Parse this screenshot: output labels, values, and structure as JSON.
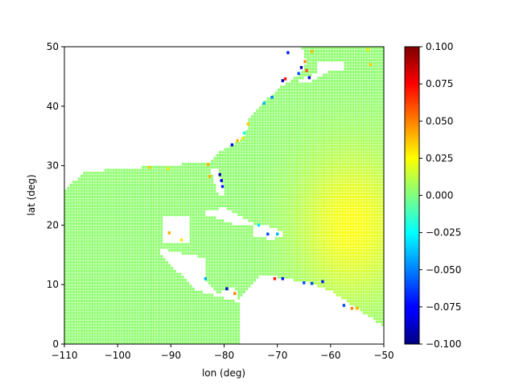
{
  "chart_data": {
    "type": "heatmap",
    "title": "",
    "xlabel": "lon (deg)",
    "ylabel": "lat (deg)",
    "xlim": [
      -110,
      -50
    ],
    "ylim": [
      0,
      50
    ],
    "x_ticks": [
      -110,
      -100,
      -90,
      -80,
      -70,
      -60,
      -50
    ],
    "x_tick_labels": [
      "−110",
      "−100",
      "−90",
      "−80",
      "−70",
      "−60",
      "−50"
    ],
    "y_ticks": [
      0,
      10,
      20,
      30,
      40,
      50
    ],
    "y_tick_labels": [
      "0",
      "10",
      "20",
      "30",
      "40",
      "50"
    ],
    "grid": false,
    "grid_step_deg": 0.5,
    "colormap": "jet",
    "colorbar": {
      "min": -0.1,
      "max": 0.1,
      "ticks": [
        -0.1,
        -0.075,
        -0.05,
        -0.025,
        0.0,
        0.025,
        0.05,
        0.075,
        0.1
      ],
      "tick_labels": [
        "−0.100",
        "−0.075",
        "−0.050",
        "−0.025",
        "0.000",
        "0.025",
        "0.050",
        "0.075",
        "0.100"
      ]
    },
    "typical_value": 0.003,
    "field_maximum_region": {
      "lon": -56,
      "lat": 20,
      "value": 0.025
    },
    "domain_mask": {
      "west_boundary_lat_to_lon": [
        [
          0,
          -110
        ],
        [
          26,
          -110
        ],
        [
          29,
          -106
        ],
        [
          29.8,
          -95
        ],
        [
          29.9,
          -90
        ],
        [
          30.6,
          -86
        ],
        [
          29.5,
          -84
        ],
        [
          32,
          -81.3
        ],
        [
          34.8,
          -76.2
        ],
        [
          38,
          -75.2
        ],
        [
          41,
          -72.2
        ],
        [
          42,
          -70.5
        ],
        [
          43.5,
          -69
        ],
        [
          45.5,
          -65.5
        ],
        [
          47.5,
          -64.5
        ],
        [
          50,
          -65.5
        ]
      ],
      "land_blocks": [
        {
          "name": "Yucatan",
          "lon": [
            -91.5,
            -86.5
          ],
          "lat": [
            17,
            21.5
          ]
        },
        {
          "name": "Central America",
          "points": [
            [
              -92,
              16
            ],
            [
              -83.5,
              14.5
            ],
            [
              -83.5,
              10.5
            ],
            [
              -81,
              8.5
            ],
            [
              -78,
              9.5
            ],
            [
              -77,
              7
            ],
            [
              -85,
              9
            ],
            [
              -92,
              15
            ]
          ]
        },
        {
          "name": "Cuba",
          "points": [
            [
              -84.5,
              22
            ],
            [
              -80,
              23
            ],
            [
              -74.5,
              20.2
            ],
            [
              -77.5,
              19.8
            ],
            [
              -82,
              21.5
            ]
          ]
        },
        {
          "name": "Hispaniola",
          "points": [
            [
              -74.5,
              19.8
            ],
            [
              -72,
              20
            ],
            [
              -68.4,
              18.5
            ],
            [
              -71,
              17.6
            ],
            [
              -74.5,
              18.2
            ]
          ]
        },
        {
          "name": "South America",
          "points": [
            [
              -77,
              0
            ],
            [
              -77,
              8
            ],
            [
              -73,
              11.5
            ],
            [
              -71.5,
              11.5
            ],
            [
              -64,
              10.3
            ],
            [
              -60,
              9
            ],
            [
              -55,
              6
            ],
            [
              -50,
              3
            ],
            [
              -50,
              0
            ]
          ]
        },
        {
          "name": "Florida",
          "points": [
            [
              -82.5,
              29.5
            ],
            [
              -81.3,
              29.5
            ],
            [
              -80,
              26.5
            ],
            [
              -80.2,
              25
            ],
            [
              -81.2,
              25.2
            ]
          ]
        },
        {
          "name": "Nova Scotia",
          "points": [
            [
              -66,
              44.2
            ],
            [
              -61,
              46.5
            ],
            [
              -59.8,
              46
            ],
            [
              -64,
              44
            ]
          ]
        }
      ],
      "outside_mask": [
        {
          "name": "Gulf of St Lawrence gap",
          "lon": [
            -62.5,
            -57.5
          ],
          "lat": [
            45.8,
            47.5
          ]
        }
      ]
    },
    "anomalies": [
      {
        "lon": -80.8,
        "lat": 28.5,
        "value": -0.09
      },
      {
        "lon": -80.5,
        "lat": 27.5,
        "value": -0.08
      },
      {
        "lon": -80.3,
        "lat": 26.5,
        "value": -0.07
      },
      {
        "lon": -78.5,
        "lat": 33.5,
        "value": -0.08
      },
      {
        "lon": -77.5,
        "lat": 34.2,
        "value": 0.04
      },
      {
        "lon": -76.5,
        "lat": 34.6,
        "value": 0.03
      },
      {
        "lon": -76.2,
        "lat": 35.5,
        "value": -0.02
      },
      {
        "lon": -75.5,
        "lat": 37.0,
        "value": 0.035
      },
      {
        "lon": -72.5,
        "lat": 40.5,
        "value": -0.04
      },
      {
        "lon": -71.0,
        "lat": 41.5,
        "value": -0.05
      },
      {
        "lon": -69.0,
        "lat": 44.3,
        "value": -0.09
      },
      {
        "lon": -68.5,
        "lat": 44.6,
        "value": 0.07
      },
      {
        "lon": -66.0,
        "lat": 45.5,
        "value": -0.06
      },
      {
        "lon": -65.5,
        "lat": 46.5,
        "value": -0.09
      },
      {
        "lon": -64.5,
        "lat": 46.0,
        "value": 0.06
      },
      {
        "lon": -64.0,
        "lat": 44.8,
        "value": -0.08
      },
      {
        "lon": -63.5,
        "lat": 49.2,
        "value": 0.04
      },
      {
        "lon": -68.0,
        "lat": 49.0,
        "value": -0.07
      },
      {
        "lon": -64.8,
        "lat": 47.5,
        "value": 0.05
      },
      {
        "lon": -53.0,
        "lat": 49.5,
        "value": 0.03
      },
      {
        "lon": -52.5,
        "lat": 47.0,
        "value": 0.035
      },
      {
        "lon": -83.0,
        "lat": 30.2,
        "value": 0.04
      },
      {
        "lon": -94.0,
        "lat": 29.7,
        "value": 0.035
      },
      {
        "lon": -90.5,
        "lat": 29.5,
        "value": 0.03
      },
      {
        "lon": -82.7,
        "lat": 28.2,
        "value": 0.04
      },
      {
        "lon": -83.5,
        "lat": 11.0,
        "value": -0.04
      },
      {
        "lon": -79.5,
        "lat": 9.3,
        "value": -0.08
      },
      {
        "lon": -78.0,
        "lat": 8.5,
        "value": 0.05
      },
      {
        "lon": -70.5,
        "lat": 11.0,
        "value": 0.07
      },
      {
        "lon": -69.0,
        "lat": 11.0,
        "value": -0.07
      },
      {
        "lon": -65.0,
        "lat": 10.3,
        "value": -0.06
      },
      {
        "lon": -63.5,
        "lat": 10.2,
        "value": -0.06
      },
      {
        "lon": -61.5,
        "lat": 10.5,
        "value": -0.07
      },
      {
        "lon": -57.5,
        "lat": 6.5,
        "value": -0.06
      },
      {
        "lon": -56.0,
        "lat": 6.0,
        "value": 0.05
      },
      {
        "lon": -55.0,
        "lat": 6.0,
        "value": 0.04
      },
      {
        "lon": -71.8,
        "lat": 18.5,
        "value": -0.06
      },
      {
        "lon": -73.5,
        "lat": 20.0,
        "value": -0.03
      },
      {
        "lon": -70.0,
        "lat": 18.5,
        "value": -0.04
      },
      {
        "lon": -90.3,
        "lat": 18.7,
        "value": 0.04
      },
      {
        "lon": -88.0,
        "lat": 17.5,
        "value": 0.03
      }
    ]
  }
}
